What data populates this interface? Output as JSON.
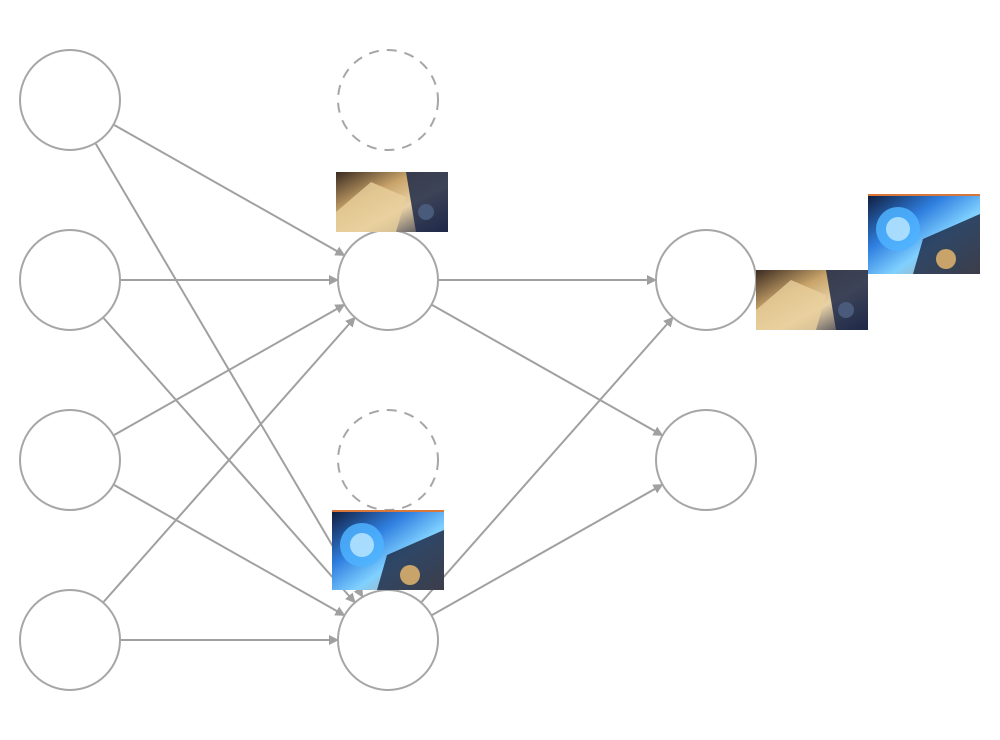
{
  "diagram": {
    "type": "neural-network",
    "colors": {
      "stroke": "#a6a6a6",
      "edge": "#a0a0a0",
      "thumb_blue": "#2f7fe0",
      "thumb_gold": "#c9a46a",
      "thumb_dark": "#1b2340"
    },
    "layers": [
      {
        "id": "input",
        "nodes": [
          "in-1",
          "in-2",
          "in-3",
          "in-4"
        ]
      },
      {
        "id": "hidden",
        "nodes": [
          "h-drop-1",
          "h-1",
          "h-drop-2",
          "h-2"
        ],
        "dropped": [
          "h-drop-1",
          "h-drop-2"
        ]
      },
      {
        "id": "output",
        "nodes": [
          "out-1",
          "out-2"
        ]
      }
    ],
    "edges": [
      [
        "in-1",
        "h-1"
      ],
      [
        "in-1",
        "h-2"
      ],
      [
        "in-2",
        "h-1"
      ],
      [
        "in-2",
        "h-2"
      ],
      [
        "in-3",
        "h-1"
      ],
      [
        "in-3",
        "h-2"
      ],
      [
        "in-4",
        "h-1"
      ],
      [
        "in-4",
        "h-2"
      ],
      [
        "h-1",
        "out-1"
      ],
      [
        "h-1",
        "out-2"
      ],
      [
        "h-2",
        "out-1"
      ],
      [
        "h-2",
        "out-2"
      ]
    ],
    "thumbnails": [
      {
        "name": "hero-gold-thumbnail",
        "variant": "gold"
      },
      {
        "name": "hero-blue-thumbnail",
        "variant": "blue"
      },
      {
        "name": "output-hero-gold-thumbnail",
        "variant": "gold"
      },
      {
        "name": "output-hero-blue-thumbnail",
        "variant": "blue"
      }
    ]
  }
}
